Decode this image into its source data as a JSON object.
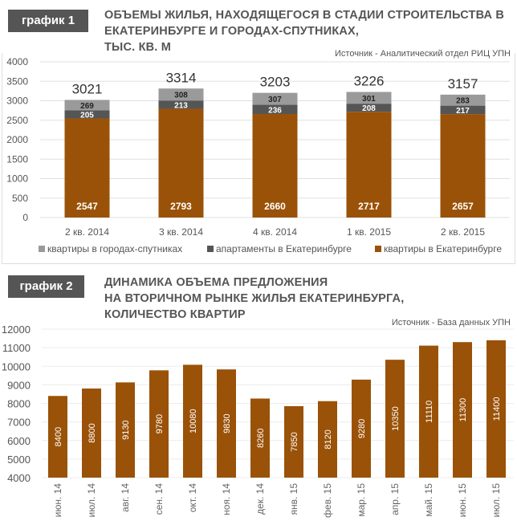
{
  "chart_data": [
    {
      "type": "bar",
      "stacked": true,
      "badge": "график 1",
      "title_lines": [
        "ОБЪЕМЫ ЖИЛЬЯ, НАХОДЯЩЕГОСЯ В СТАДИИ СТРОИТЕЛЬСТВА В",
        "ЕКАТЕРИНБУРГЕ И ГОРОДАХ-СПУТНИКАХ,",
        "ТЫС. КВ. М"
      ],
      "source": "Источник - Аналитический отдел РИЦ УПН",
      "categories": [
        "2 кв. 2014",
        "3 кв. 2014",
        "4 кв. 2014",
        "1 кв. 2015",
        "2 кв. 2015"
      ],
      "series": [
        {
          "name": "квартиры в Екатеринбурге",
          "color": "#9a5208",
          "values": [
            2547,
            2793,
            2660,
            2717,
            2657
          ]
        },
        {
          "name": "апартаменты в Екатеринбурге",
          "color": "#555555",
          "values": [
            205,
            213,
            236,
            208,
            217
          ]
        },
        {
          "name": "квартиры в городах-спутниках",
          "color": "#9a9a9a",
          "values": [
            269,
            308,
            307,
            301,
            283
          ]
        }
      ],
      "totals": [
        3021,
        3314,
        3203,
        3226,
        3157
      ],
      "legend_order": [
        2,
        1,
        0
      ],
      "ylim": [
        0,
        4000
      ],
      "yticks": [
        "0",
        "500",
        "1000",
        "1500",
        "2000",
        "2500",
        "3000",
        "3500",
        "4000"
      ],
      "legend": "bottom"
    },
    {
      "type": "bar",
      "badge": "график 2",
      "title_lines": [
        "ДИНАМИКА ОБЪЕМА ПРЕДЛОЖЕНИЯ",
        "НА ВТОРИЧНОМ РЫНКЕ ЖИЛЬЯ ЕКАТЕРИНБУРГА,",
        "КОЛИЧЕСТВО КВАРТИР"
      ],
      "source": "Источник - База данных УПН",
      "categories": [
        "июн. 14",
        "июл. 14",
        "авг. 14",
        "сен. 14",
        "окт. 14",
        "ноя. 14",
        "дек. 14",
        "янв. 15",
        "фев. 15",
        "мар. 15",
        "апр. 15",
        "май. 15",
        "июн. 15",
        "июл. 15"
      ],
      "values": [
        8400,
        8800,
        9130,
        9780,
        10080,
        9830,
        8260,
        7850,
        8120,
        9280,
        10350,
        11110,
        11300,
        11400
      ],
      "labels": [
        "8400",
        "8800",
        "9130",
        "9780",
        "10080",
        "9830",
        "8260",
        "7850",
        "8120",
        "9280",
        "10350",
        "11110",
        "11300",
        "11400"
      ],
      "color": "#9a5208",
      "ylim": [
        4000,
        12000
      ],
      "yticks": [
        "4000",
        "5000",
        "6000",
        "7000",
        "8000",
        "9000",
        "10000",
        "11000",
        "12000"
      ]
    }
  ]
}
